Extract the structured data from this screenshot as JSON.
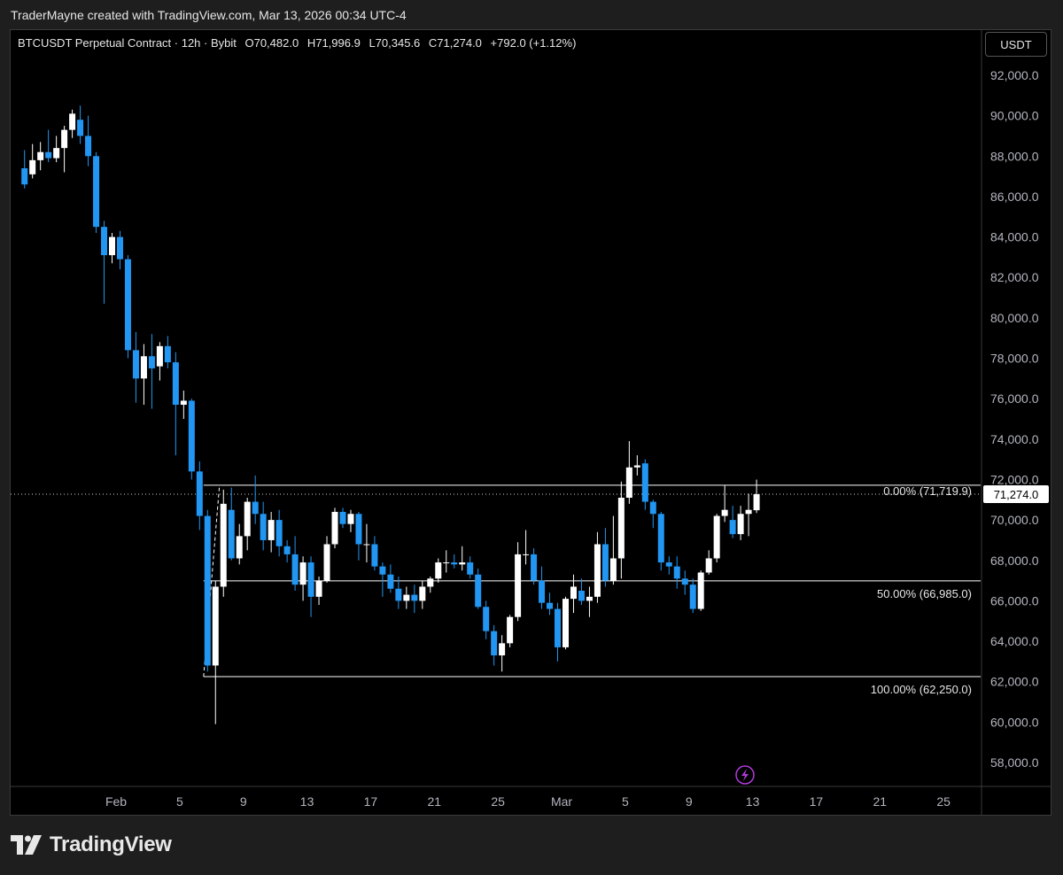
{
  "header": {
    "credit": "TraderMayne created with TradingView.com, Mar 13, 2026 00:34 UTC-4"
  },
  "legend": {
    "symbol": "BTCUSDT Perpetual Contract · 12h · Bybit",
    "open": "O70,482.0",
    "high": "H71,996.9",
    "low": "L70,345.6",
    "close": "C71,274.0",
    "change": "+792.0 (+1.12%)"
  },
  "currency_label": "USDT",
  "brand": {
    "name": "TradingView"
  },
  "colors": {
    "up": "#ffffff",
    "down": "#2196f3",
    "line": "#ffffff",
    "grid_text": "#b2b5be",
    "background": "#000000",
    "lightning_accent": "#b03bd8"
  },
  "chart_data": {
    "type": "candlestick",
    "timeframe": "12h",
    "y_axis": {
      "ticks": [
        58000,
        60000,
        62000,
        64000,
        66000,
        68000,
        70000,
        72000,
        74000,
        76000,
        78000,
        80000,
        82000,
        84000,
        86000,
        88000,
        90000,
        92000
      ],
      "tick_labels": [
        "58,000.0",
        "60,000.0",
        "62,000.0",
        "64,000.0",
        "66,000.0",
        "68,000.0",
        "70,000.0",
        "72,000.0",
        "74,000.0",
        "76,000.0",
        "78,000.0",
        "80,000.0",
        "82,000.0",
        "84,000.0",
        "86,000.0",
        "88,000.0",
        "90,000.0",
        "92,000.0"
      ]
    },
    "x_axis": {
      "ticks": [
        {
          "label": "Feb",
          "date": "2026-02-01"
        },
        {
          "label": "5",
          "date": "2026-02-05"
        },
        {
          "label": "9",
          "date": "2026-02-09"
        },
        {
          "label": "13",
          "date": "2026-02-13"
        },
        {
          "label": "17",
          "date": "2026-02-17"
        },
        {
          "label": "21",
          "date": "2026-02-21"
        },
        {
          "label": "25",
          "date": "2026-02-25"
        },
        {
          "label": "Mar",
          "date": "2026-03-01"
        },
        {
          "label": "5",
          "date": "2026-03-05"
        },
        {
          "label": "9",
          "date": "2026-03-09"
        },
        {
          "label": "13",
          "date": "2026-03-13"
        },
        {
          "label": "17",
          "date": "2026-03-17"
        },
        {
          "label": "21",
          "date": "2026-03-21"
        },
        {
          "label": "25",
          "date": "2026-03-25"
        }
      ]
    },
    "last_price": {
      "value": 71274.0,
      "label": "71,274.0"
    },
    "fib_levels": [
      {
        "label": "0.00% (71,719.9)",
        "value": 71719.9
      },
      {
        "label": "50.00% (66,985.0)",
        "value": 66985.0
      },
      {
        "label": "100.00% (62,250.0)",
        "value": 62250.0
      }
    ],
    "candles": [
      {
        "t": "2026-01-26 00:00",
        "o": 87400,
        "h": 88300,
        "l": 86400,
        "c": 86600
      },
      {
        "t": "2026-01-26 12:00",
        "o": 87100,
        "h": 88600,
        "l": 86900,
        "c": 87800
      },
      {
        "t": "2026-01-27 00:00",
        "o": 87800,
        "h": 88700,
        "l": 87300,
        "c": 88200
      },
      {
        "t": "2026-01-27 12:00",
        "o": 88200,
        "h": 89300,
        "l": 87700,
        "c": 87900
      },
      {
        "t": "2026-01-28 00:00",
        "o": 87900,
        "h": 89000,
        "l": 87700,
        "c": 88400
      },
      {
        "t": "2026-01-28 12:00",
        "o": 88400,
        "h": 89500,
        "l": 87200,
        "c": 89300
      },
      {
        "t": "2026-01-29 00:00",
        "o": 89300,
        "h": 90300,
        "l": 88900,
        "c": 90100
      },
      {
        "t": "2026-01-29 12:00",
        "o": 89800,
        "h": 90500,
        "l": 88600,
        "c": 89000
      },
      {
        "t": "2026-01-30 00:00",
        "o": 89000,
        "h": 90000,
        "l": 87500,
        "c": 88000
      },
      {
        "t": "2026-01-30 12:00",
        "o": 88000,
        "h": 88200,
        "l": 84200,
        "c": 84500
      },
      {
        "t": "2026-01-31 00:00",
        "o": 84500,
        "h": 84800,
        "l": 80700,
        "c": 83100
      },
      {
        "t": "2026-01-31 12:00",
        "o": 83100,
        "h": 84200,
        "l": 82700,
        "c": 84000
      },
      {
        "t": "2026-02-01 00:00",
        "o": 84000,
        "h": 84300,
        "l": 82400,
        "c": 82900
      },
      {
        "t": "2026-02-01 12:00",
        "o": 82900,
        "h": 83100,
        "l": 78000,
        "c": 78400
      },
      {
        "t": "2026-02-02 00:00",
        "o": 78400,
        "h": 79300,
        "l": 75800,
        "c": 77000
      },
      {
        "t": "2026-02-02 12:00",
        "o": 77000,
        "h": 78700,
        "l": 75700,
        "c": 78100
      },
      {
        "t": "2026-02-03 00:00",
        "o": 78100,
        "h": 79200,
        "l": 75500,
        "c": 77500
      },
      {
        "t": "2026-02-03 12:00",
        "o": 77600,
        "h": 78800,
        "l": 76900,
        "c": 78600
      },
      {
        "t": "2026-02-04 00:00",
        "o": 78600,
        "h": 79100,
        "l": 77500,
        "c": 77800
      },
      {
        "t": "2026-02-04 12:00",
        "o": 77800,
        "h": 78300,
        "l": 73200,
        "c": 75700
      },
      {
        "t": "2026-02-05 00:00",
        "o": 75700,
        "h": 76400,
        "l": 75000,
        "c": 75900
      },
      {
        "t": "2026-02-05 12:00",
        "o": 75900,
        "h": 76000,
        "l": 72000,
        "c": 72400
      },
      {
        "t": "2026-02-06 00:00",
        "o": 72400,
        "h": 72900,
        "l": 69500,
        "c": 70200
      },
      {
        "t": "2026-02-06 12:00",
        "o": 70200,
        "h": 70500,
        "l": 62500,
        "c": 62800
      },
      {
        "t": "2026-02-07 00:00",
        "o": 62800,
        "h": 67000,
        "l": 59900,
        "c": 66700
      },
      {
        "t": "2026-02-07 12:00",
        "o": 66700,
        "h": 71500,
        "l": 66200,
        "c": 70800
      },
      {
        "t": "2026-02-08 00:00",
        "o": 70500,
        "h": 71600,
        "l": 68000,
        "c": 68100
      },
      {
        "t": "2026-02-08 12:00",
        "o": 68100,
        "h": 69800,
        "l": 67800,
        "c": 69200
      },
      {
        "t": "2026-02-09 00:00",
        "o": 69200,
        "h": 71100,
        "l": 68500,
        "c": 70900
      },
      {
        "t": "2026-02-09 12:00",
        "o": 70900,
        "h": 72200,
        "l": 69800,
        "c": 70300
      },
      {
        "t": "2026-02-10 00:00",
        "o": 70300,
        "h": 70900,
        "l": 68500,
        "c": 69000
      },
      {
        "t": "2026-02-10 12:00",
        "o": 69000,
        "h": 70400,
        "l": 68400,
        "c": 70000
      },
      {
        "t": "2026-02-11 00:00",
        "o": 70000,
        "h": 70500,
        "l": 68200,
        "c": 68700
      },
      {
        "t": "2026-02-11 12:00",
        "o": 68700,
        "h": 69000,
        "l": 67900,
        "c": 68300
      },
      {
        "t": "2026-02-12 00:00",
        "o": 68300,
        "h": 69200,
        "l": 66500,
        "c": 66800
      },
      {
        "t": "2026-02-12 12:00",
        "o": 66800,
        "h": 68200,
        "l": 66000,
        "c": 67900
      },
      {
        "t": "2026-02-13 00:00",
        "o": 67900,
        "h": 68200,
        "l": 65200,
        "c": 66200
      },
      {
        "t": "2026-02-13 12:00",
        "o": 66200,
        "h": 67200,
        "l": 65800,
        "c": 67000
      },
      {
        "t": "2026-02-14 00:00",
        "o": 67000,
        "h": 69200,
        "l": 66900,
        "c": 68800
      },
      {
        "t": "2026-02-14 12:00",
        "o": 68800,
        "h": 70600,
        "l": 68600,
        "c": 70400
      },
      {
        "t": "2026-02-15 00:00",
        "o": 70400,
        "h": 70600,
        "l": 69600,
        "c": 69800
      },
      {
        "t": "2026-02-15 12:00",
        "o": 69800,
        "h": 70500,
        "l": 69400,
        "c": 70300
      },
      {
        "t": "2026-02-16 00:00",
        "o": 70300,
        "h": 70400,
        "l": 68000,
        "c": 68800
      },
      {
        "t": "2026-02-16 12:00",
        "o": 68800,
        "h": 69800,
        "l": 67900,
        "c": 68800
      },
      {
        "t": "2026-02-17 00:00",
        "o": 68800,
        "h": 69200,
        "l": 67500,
        "c": 67700
      },
      {
        "t": "2026-02-17 12:00",
        "o": 67700,
        "h": 67900,
        "l": 66200,
        "c": 67300
      },
      {
        "t": "2026-02-18 00:00",
        "o": 67300,
        "h": 67800,
        "l": 66400,
        "c": 66600
      },
      {
        "t": "2026-02-18 12:00",
        "o": 66600,
        "h": 67200,
        "l": 65600,
        "c": 66000
      },
      {
        "t": "2026-02-19 00:00",
        "o": 66000,
        "h": 66700,
        "l": 65600,
        "c": 66300
      },
      {
        "t": "2026-02-19 12:00",
        "o": 66300,
        "h": 66800,
        "l": 65400,
        "c": 66000
      },
      {
        "t": "2026-02-20 00:00",
        "o": 66000,
        "h": 67000,
        "l": 65600,
        "c": 66700
      },
      {
        "t": "2026-02-20 12:00",
        "o": 66700,
        "h": 67200,
        "l": 66400,
        "c": 67100
      },
      {
        "t": "2026-02-21 00:00",
        "o": 67100,
        "h": 68100,
        "l": 66900,
        "c": 67900
      },
      {
        "t": "2026-02-21 12:00",
        "o": 67900,
        "h": 68500,
        "l": 67400,
        "c": 67900
      },
      {
        "t": "2026-02-22 00:00",
        "o": 67900,
        "h": 68300,
        "l": 67600,
        "c": 67800
      },
      {
        "t": "2026-02-22 12:00",
        "o": 67800,
        "h": 68700,
        "l": 67500,
        "c": 67900
      },
      {
        "t": "2026-02-23 00:00",
        "o": 67900,
        "h": 68200,
        "l": 67100,
        "c": 67300
      },
      {
        "t": "2026-02-23 12:00",
        "o": 67300,
        "h": 67600,
        "l": 65600,
        "c": 65700
      },
      {
        "t": "2026-02-24 00:00",
        "o": 65700,
        "h": 66000,
        "l": 64100,
        "c": 64500
      },
      {
        "t": "2026-02-24 12:00",
        "o": 64500,
        "h": 64800,
        "l": 62800,
        "c": 63300
      },
      {
        "t": "2026-02-25 00:00",
        "o": 63300,
        "h": 64300,
        "l": 62500,
        "c": 63900
      },
      {
        "t": "2026-02-25 12:00",
        "o": 63900,
        "h": 65300,
        "l": 63700,
        "c": 65200
      },
      {
        "t": "2026-02-26 00:00",
        "o": 65200,
        "h": 68900,
        "l": 65000,
        "c": 68300
      },
      {
        "t": "2026-02-26 12:00",
        "o": 68300,
        "h": 69500,
        "l": 67800,
        "c": 68300
      },
      {
        "t": "2026-02-27 00:00",
        "o": 68300,
        "h": 68600,
        "l": 66800,
        "c": 67000
      },
      {
        "t": "2026-02-27 12:00",
        "o": 67000,
        "h": 67700,
        "l": 65600,
        "c": 65900
      },
      {
        "t": "2026-02-28 00:00",
        "o": 65900,
        "h": 66400,
        "l": 65300,
        "c": 65600
      },
      {
        "t": "2026-02-28 12:00",
        "o": 65600,
        "h": 65900,
        "l": 63000,
        "c": 63700
      },
      {
        "t": "2026-03-01 00:00",
        "o": 63700,
        "h": 66200,
        "l": 63600,
        "c": 66100
      },
      {
        "t": "2026-03-01 12:00",
        "o": 66100,
        "h": 67300,
        "l": 65400,
        "c": 66700
      },
      {
        "t": "2026-03-02 00:00",
        "o": 66500,
        "h": 67100,
        "l": 65800,
        "c": 66000
      },
      {
        "t": "2026-03-02 12:00",
        "o": 66000,
        "h": 66700,
        "l": 65200,
        "c": 66200
      },
      {
        "t": "2026-03-03 00:00",
        "o": 66200,
        "h": 69400,
        "l": 65900,
        "c": 68800
      },
      {
        "t": "2026-03-03 12:00",
        "o": 68800,
        "h": 69600,
        "l": 66700,
        "c": 67000
      },
      {
        "t": "2026-03-04 00:00",
        "o": 67000,
        "h": 70200,
        "l": 66800,
        "c": 68100
      },
      {
        "t": "2026-03-04 12:00",
        "o": 68100,
        "h": 71900,
        "l": 67100,
        "c": 71100
      },
      {
        "t": "2026-03-05 00:00",
        "o": 71100,
        "h": 73900,
        "l": 70800,
        "c": 72600
      },
      {
        "t": "2026-03-05 12:00",
        "o": 72600,
        "h": 73200,
        "l": 72200,
        "c": 72700
      },
      {
        "t": "2026-03-06 00:00",
        "o": 72800,
        "h": 73000,
        "l": 70500,
        "c": 70900
      },
      {
        "t": "2026-03-06 12:00",
        "o": 70900,
        "h": 71000,
        "l": 69600,
        "c": 70300
      },
      {
        "t": "2026-03-07 00:00",
        "o": 70300,
        "h": 70400,
        "l": 67500,
        "c": 67900
      },
      {
        "t": "2026-03-07 12:00",
        "o": 67900,
        "h": 68200,
        "l": 67300,
        "c": 67700
      },
      {
        "t": "2026-03-08 00:00",
        "o": 67700,
        "h": 68200,
        "l": 66600,
        "c": 67100
      },
      {
        "t": "2026-03-08 12:00",
        "o": 67100,
        "h": 67500,
        "l": 66300,
        "c": 66800
      },
      {
        "t": "2026-03-09 00:00",
        "o": 66800,
        "h": 67100,
        "l": 65400,
        "c": 65600
      },
      {
        "t": "2026-03-09 12:00",
        "o": 65600,
        "h": 67500,
        "l": 65500,
        "c": 67400
      },
      {
        "t": "2026-03-10 00:00",
        "o": 67400,
        "h": 68500,
        "l": 67300,
        "c": 68100
      },
      {
        "t": "2026-03-10 12:00",
        "o": 68100,
        "h": 70300,
        "l": 67900,
        "c": 70200
      },
      {
        "t": "2026-03-11 00:00",
        "o": 70200,
        "h": 71700,
        "l": 69900,
        "c": 70500
      },
      {
        "t": "2026-03-11 12:00",
        "o": 70000,
        "h": 70700,
        "l": 69100,
        "c": 69300
      },
      {
        "t": "2026-03-12 00:00",
        "o": 69300,
        "h": 70700,
        "l": 69000,
        "c": 70300
      },
      {
        "t": "2026-03-12 12:00",
        "o": 70300,
        "h": 71300,
        "l": 69200,
        "c": 70500
      },
      {
        "t": "2026-03-13 00:00",
        "o": 70482,
        "h": 71996.9,
        "l": 70345.6,
        "c": 71274
      }
    ]
  }
}
